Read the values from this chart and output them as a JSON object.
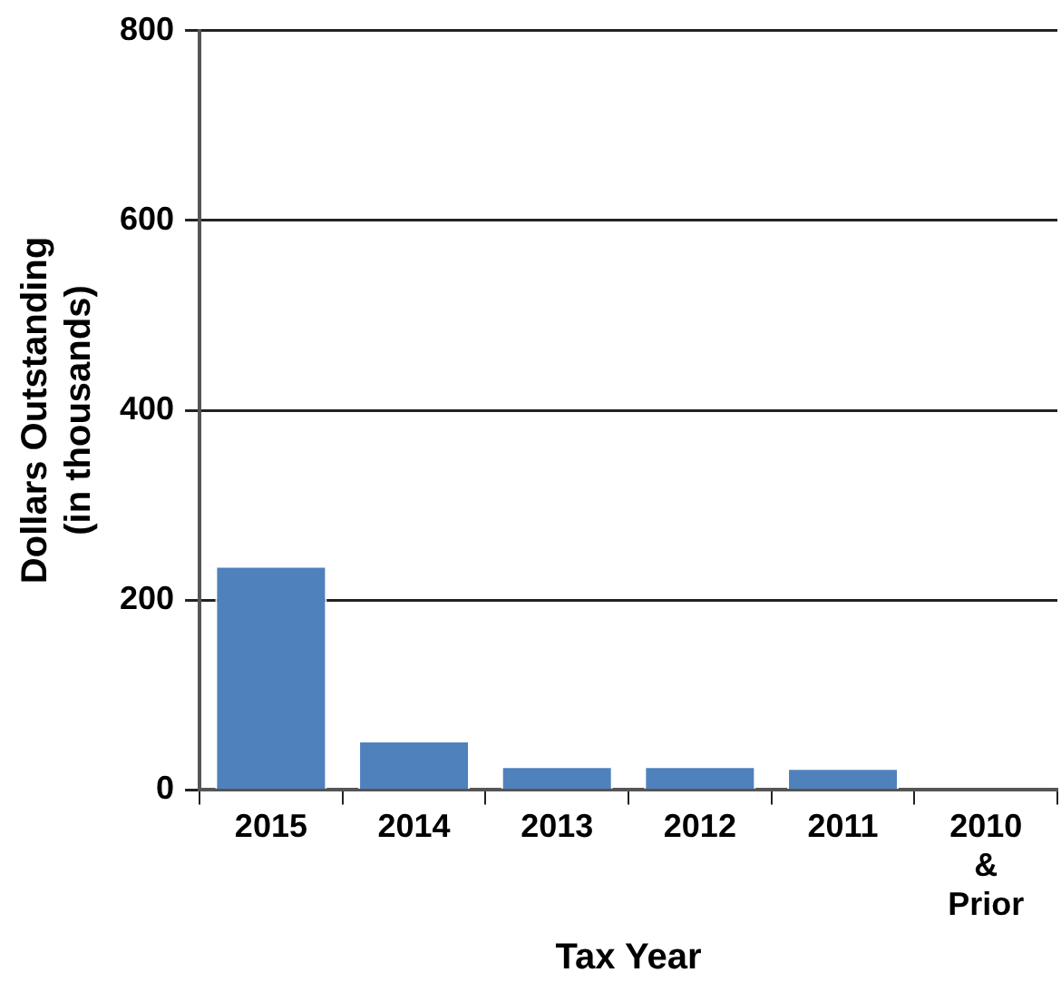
{
  "chart_data": {
    "type": "bar",
    "xlabel": "Tax Year",
    "ylabel": "Dollars Outstanding (in thousands)",
    "categories": [
      "2015",
      "2014",
      "2013",
      "2012",
      "2011",
      "2010 & Prior"
    ],
    "values": [
      236,
      52,
      25,
      25,
      23,
      0
    ],
    "color": "#4f81bd",
    "ylim": [
      0,
      800
    ],
    "yticks": [
      0,
      200,
      400,
      600,
      800
    ],
    "grid": "y",
    "legend": false
  }
}
